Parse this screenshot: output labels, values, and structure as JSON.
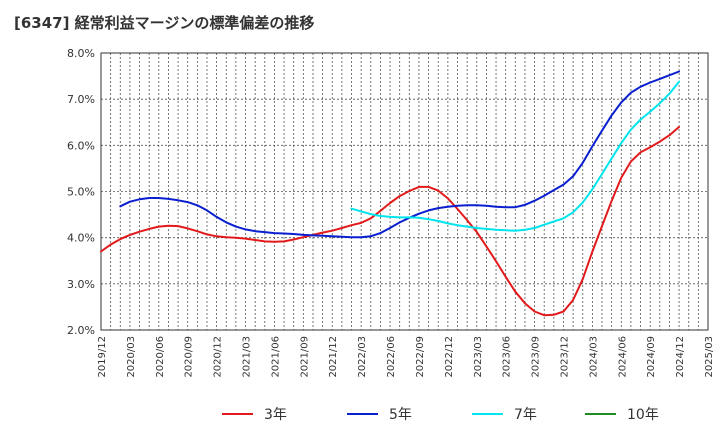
{
  "chart_data": {
    "type": "line",
    "title": "[6347]  経常利益マージンの標準偏差の推移",
    "xlabel": "",
    "ylabel": "",
    "ylim": [
      0.02,
      0.08
    ],
    "y_ticks": [
      0.02,
      0.03,
      0.04,
      0.05,
      0.06,
      0.07,
      0.08
    ],
    "y_tick_labels": [
      "2.0%",
      "3.0%",
      "4.0%",
      "5.0%",
      "6.0%",
      "7.0%",
      "8.0%"
    ],
    "x_range": [
      "2019-12",
      "2025-03"
    ],
    "x_ticks": [
      "2019/12",
      "2020/03",
      "2020/06",
      "2020/09",
      "2020/12",
      "2021/03",
      "2021/06",
      "2021/09",
      "2021/12",
      "2022/03",
      "2022/06",
      "2022/09",
      "2022/12",
      "2023/03",
      "2023/06",
      "2023/09",
      "2023/12",
      "2024/03",
      "2024/06",
      "2024/09",
      "2024/12",
      "2025/03"
    ],
    "grid": true,
    "legend_position": "bottom",
    "series": [
      {
        "name": "3年",
        "color": "#e31a1c",
        "points": [
          [
            "2019-12",
            0.037
          ],
          [
            "2020-01",
            0.0385
          ],
          [
            "2020-02",
            0.0397
          ],
          [
            "2020-03",
            0.0406
          ],
          [
            "2020-04",
            0.0413
          ],
          [
            "2020-05",
            0.0419
          ],
          [
            "2020-06",
            0.0424
          ],
          [
            "2020-07",
            0.0426
          ],
          [
            "2020-08",
            0.0425
          ],
          [
            "2020-09",
            0.042
          ],
          [
            "2020-10",
            0.0414
          ],
          [
            "2020-11",
            0.0407
          ],
          [
            "2020-12",
            0.0403
          ],
          [
            "2021-01",
            0.0401
          ],
          [
            "2021-02",
            0.04
          ],
          [
            "2021-03",
            0.0398
          ],
          [
            "2021-04",
            0.0395
          ],
          [
            "2021-05",
            0.0392
          ],
          [
            "2021-06",
            0.0391
          ],
          [
            "2021-07",
            0.0392
          ],
          [
            "2021-08",
            0.0396
          ],
          [
            "2021-09",
            0.0401
          ],
          [
            "2021-10",
            0.0406
          ],
          [
            "2021-11",
            0.0411
          ],
          [
            "2021-12",
            0.0415
          ],
          [
            "2022-01",
            0.0421
          ],
          [
            "2022-02",
            0.0427
          ],
          [
            "2022-03",
            0.0432
          ],
          [
            "2022-04",
            0.0442
          ],
          [
            "2022-05",
            0.0458
          ],
          [
            "2022-06",
            0.0475
          ],
          [
            "2022-07",
            0.049
          ],
          [
            "2022-08",
            0.0501
          ],
          [
            "2022-09",
            0.051
          ],
          [
            "2022-10",
            0.051
          ],
          [
            "2022-11",
            0.0502
          ],
          [
            "2022-12",
            0.0485
          ],
          [
            "2023-01",
            0.0462
          ],
          [
            "2023-02",
            0.0438
          ],
          [
            "2023-03",
            0.0412
          ],
          [
            "2023-04",
            0.0381
          ],
          [
            "2023-05",
            0.0349
          ],
          [
            "2023-06",
            0.0315
          ],
          [
            "2023-07",
            0.0283
          ],
          [
            "2023-08",
            0.0258
          ],
          [
            "2023-09",
            0.024
          ],
          [
            "2023-10",
            0.0232
          ],
          [
            "2023-11",
            0.0233
          ],
          [
            "2023-12",
            0.024
          ],
          [
            "2024-01",
            0.0265
          ],
          [
            "2024-02",
            0.031
          ],
          [
            "2024-03",
            0.037
          ],
          [
            "2024-04",
            0.0425
          ],
          [
            "2024-05",
            0.048
          ],
          [
            "2024-06",
            0.053
          ],
          [
            "2024-07",
            0.0565
          ],
          [
            "2024-08",
            0.0585
          ],
          [
            "2024-09",
            0.0596
          ],
          [
            "2024-10",
            0.0608
          ],
          [
            "2024-11",
            0.0622
          ],
          [
            "2024-12",
            0.064
          ]
        ]
      },
      {
        "name": "5年",
        "color": "#0a1fd0",
        "points": [
          [
            "2020-02",
            0.0468
          ],
          [
            "2020-03",
            0.0478
          ],
          [
            "2020-04",
            0.0483
          ],
          [
            "2020-05",
            0.0486
          ],
          [
            "2020-06",
            0.0486
          ],
          [
            "2020-07",
            0.0484
          ],
          [
            "2020-08",
            0.0481
          ],
          [
            "2020-09",
            0.0477
          ],
          [
            "2020-10",
            0.047
          ],
          [
            "2020-11",
            0.0459
          ],
          [
            "2020-12",
            0.0445
          ],
          [
            "2021-01",
            0.0433
          ],
          [
            "2021-02",
            0.0424
          ],
          [
            "2021-03",
            0.0418
          ],
          [
            "2021-04",
            0.0414
          ],
          [
            "2021-05",
            0.0412
          ],
          [
            "2021-06",
            0.041
          ],
          [
            "2021-07",
            0.0409
          ],
          [
            "2021-08",
            0.0408
          ],
          [
            "2021-09",
            0.0406
          ],
          [
            "2021-10",
            0.0405
          ],
          [
            "2021-11",
            0.0404
          ],
          [
            "2021-12",
            0.0403
          ],
          [
            "2022-01",
            0.0402
          ],
          [
            "2022-02",
            0.0401
          ],
          [
            "2022-03",
            0.0401
          ],
          [
            "2022-04",
            0.0403
          ],
          [
            "2022-05",
            0.041
          ],
          [
            "2022-06",
            0.0421
          ],
          [
            "2022-07",
            0.0433
          ],
          [
            "2022-08",
            0.0443
          ],
          [
            "2022-09",
            0.0452
          ],
          [
            "2022-10",
            0.0459
          ],
          [
            "2022-11",
            0.0464
          ],
          [
            "2022-12",
            0.0467
          ],
          [
            "2023-01",
            0.0469
          ],
          [
            "2023-02",
            0.047
          ],
          [
            "2023-03",
            0.047
          ],
          [
            "2023-04",
            0.0469
          ],
          [
            "2023-05",
            0.0467
          ],
          [
            "2023-06",
            0.0466
          ],
          [
            "2023-07",
            0.0466
          ],
          [
            "2023-08",
            0.0471
          ],
          [
            "2023-09",
            0.048
          ],
          [
            "2023-10",
            0.0491
          ],
          [
            "2023-11",
            0.0503
          ],
          [
            "2023-12",
            0.0515
          ],
          [
            "2024-01",
            0.0533
          ],
          [
            "2024-02",
            0.0562
          ],
          [
            "2024-03",
            0.0598
          ],
          [
            "2024-04",
            0.0632
          ],
          [
            "2024-05",
            0.0665
          ],
          [
            "2024-06",
            0.0693
          ],
          [
            "2024-07",
            0.0714
          ],
          [
            "2024-08",
            0.0727
          ],
          [
            "2024-09",
            0.0736
          ],
          [
            "2024-10",
            0.0744
          ],
          [
            "2024-11",
            0.0752
          ],
          [
            "2024-12",
            0.076
          ]
        ]
      },
      {
        "name": "7年",
        "color": "#00e5ee",
        "points": [
          [
            "2022-02",
            0.0463
          ],
          [
            "2022-03",
            0.0457
          ],
          [
            "2022-04",
            0.0451
          ],
          [
            "2022-05",
            0.0447
          ],
          [
            "2022-06",
            0.0445
          ],
          [
            "2022-07",
            0.0444
          ],
          [
            "2022-08",
            0.0444
          ],
          [
            "2022-09",
            0.0443
          ],
          [
            "2022-10",
            0.044
          ],
          [
            "2022-11",
            0.0436
          ],
          [
            "2022-12",
            0.0431
          ],
          [
            "2023-01",
            0.0427
          ],
          [
            "2023-02",
            0.0424
          ],
          [
            "2023-03",
            0.0421
          ],
          [
            "2023-04",
            0.0419
          ],
          [
            "2023-05",
            0.0417
          ],
          [
            "2023-06",
            0.0416
          ],
          [
            "2023-07",
            0.0415
          ],
          [
            "2023-08",
            0.0417
          ],
          [
            "2023-09",
            0.0421
          ],
          [
            "2023-10",
            0.0428
          ],
          [
            "2023-11",
            0.0435
          ],
          [
            "2023-12",
            0.0442
          ],
          [
            "2024-01",
            0.0455
          ],
          [
            "2024-02",
            0.0476
          ],
          [
            "2024-03",
            0.0505
          ],
          [
            "2024-04",
            0.0538
          ],
          [
            "2024-05",
            0.0572
          ],
          [
            "2024-06",
            0.0605
          ],
          [
            "2024-07",
            0.0634
          ],
          [
            "2024-08",
            0.0656
          ],
          [
            "2024-09",
            0.0673
          ],
          [
            "2024-10",
            0.0691
          ],
          [
            "2024-11",
            0.0712
          ],
          [
            "2024-12",
            0.0738
          ]
        ]
      },
      {
        "name": "10年",
        "color": "#228b22",
        "points": []
      }
    ]
  }
}
